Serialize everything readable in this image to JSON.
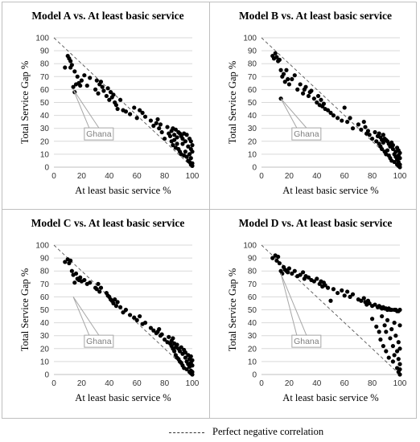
{
  "legend": {
    "label": "Perfect negative correlation"
  },
  "chart_data": [
    {
      "type": "scatter",
      "title": "Model A vs. At least basic service",
      "xlabel": "At least basic service %",
      "ylabel": "Total Service Gap %",
      "xlim": [
        0,
        100
      ],
      "ylim": [
        0,
        100
      ],
      "xticks": [
        "0",
        "20",
        "40",
        "60",
        "80",
        "100"
      ],
      "yticks": [
        "0",
        "10",
        "20",
        "30",
        "40",
        "50",
        "60",
        "70",
        "80",
        "90",
        "100"
      ],
      "grid": true,
      "annotation": "Ghana",
      "reference_line": "Perfect negative correlation",
      "series": [
        {
          "x": [
            8,
            10,
            11,
            12,
            12,
            13,
            14,
            15,
            15,
            16,
            17,
            18,
            19,
            20,
            22,
            24,
            26,
            30,
            31,
            32,
            33,
            34,
            35,
            36,
            38,
            39,
            40,
            41,
            42,
            43,
            44,
            45,
            46,
            48,
            50,
            52,
            55,
            58,
            60,
            62,
            64,
            66,
            70,
            72,
            74,
            75,
            76,
            77,
            78,
            80,
            82,
            83,
            84,
            85,
            85,
            86,
            86,
            87,
            87,
            88,
            88,
            89,
            89,
            90,
            90,
            91,
            91,
            92,
            92,
            93,
            93,
            94,
            94,
            95,
            95,
            96,
            96,
            97,
            97,
            98,
            98,
            98,
            99,
            99,
            99,
            99,
            100,
            100,
            100,
            100
          ],
          "y": [
            77,
            86,
            84,
            77,
            82,
            79,
            62,
            58,
            74,
            64,
            70,
            65,
            63,
            67,
            71,
            63,
            69,
            60,
            67,
            57,
            64,
            66,
            62,
            59,
            55,
            61,
            52,
            58,
            54,
            56,
            50,
            48,
            45,
            52,
            44,
            43,
            41,
            46,
            38,
            44,
            42,
            39,
            36,
            32,
            34,
            37,
            30,
            33,
            27,
            22,
            31,
            26,
            24,
            28,
            20,
            30,
            17,
            25,
            21,
            29,
            15,
            23,
            18,
            27,
            14,
            26,
            12,
            24,
            10,
            22,
            18,
            26,
            9,
            20,
            12,
            25,
            8,
            16,
            5,
            10,
            4,
            22,
            2,
            7,
            14,
            20,
            1,
            3,
            17,
            12
          ]
        }
      ]
    },
    {
      "type": "scatter",
      "title": "Model B vs. At least basic service",
      "xlabel": "At least basic service %",
      "ylabel": "Total Service Gap %",
      "xlim": [
        0,
        100
      ],
      "ylim": [
        0,
        100
      ],
      "xticks": [
        "0",
        "20",
        "40",
        "60",
        "80",
        "100"
      ],
      "yticks": [
        "0",
        "10",
        "20",
        "30",
        "40",
        "50",
        "60",
        "70",
        "80",
        "90",
        "100"
      ],
      "grid": true,
      "annotation": "Ghana",
      "reference_line": "Perfect negative correlation",
      "series": [
        {
          "x": [
            8,
            9,
            10,
            11,
            12,
            13,
            14,
            14,
            15,
            16,
            17,
            18,
            19,
            20,
            22,
            24,
            26,
            28,
            30,
            31,
            32,
            34,
            35,
            36,
            38,
            40,
            41,
            42,
            43,
            44,
            45,
            46,
            48,
            50,
            52,
            55,
            58,
            60,
            62,
            64,
            66,
            70,
            72,
            74,
            75,
            76,
            77,
            78,
            80,
            82,
            83,
            84,
            85,
            85,
            86,
            86,
            87,
            87,
            88,
            88,
            89,
            89,
            90,
            90,
            91,
            91,
            92,
            92,
            93,
            93,
            94,
            94,
            95,
            95,
            96,
            96,
            97,
            97,
            98,
            98,
            98,
            99,
            99,
            99,
            99,
            100,
            100,
            100,
            100
          ],
          "y": [
            86,
            84,
            88,
            85,
            82,
            83,
            53,
            75,
            70,
            72,
            66,
            75,
            68,
            64,
            68,
            71,
            60,
            64,
            57,
            60,
            62,
            55,
            58,
            59,
            53,
            50,
            55,
            48,
            52,
            47,
            49,
            45,
            44,
            42,
            40,
            38,
            36,
            46,
            35,
            38,
            30,
            33,
            29,
            35,
            31,
            26,
            28,
            25,
            22,
            27,
            20,
            24,
            18,
            26,
            16,
            23,
            21,
            14,
            25,
            19,
            12,
            22,
            10,
            21,
            13,
            20,
            9,
            18,
            7,
            16,
            19,
            5,
            14,
            17,
            10,
            4,
            12,
            8,
            2,
            6,
            15,
            1,
            4,
            9,
            13,
            0,
            2,
            7,
            11
          ]
        }
      ]
    },
    {
      "type": "scatter",
      "title": "Model C vs. At least basic service",
      "xlabel": "At least basic service %",
      "ylabel": "Total Service Gap %",
      "xlim": [
        0,
        100
      ],
      "ylim": [
        0,
        100
      ],
      "xticks": [
        "0",
        "20",
        "40",
        "60",
        "80",
        "100"
      ],
      "yticks": [
        "0",
        "10",
        "20",
        "30",
        "40",
        "50",
        "60",
        "70",
        "80",
        "90",
        "100"
      ],
      "grid": true,
      "annotation": "Ghana",
      "reference_line": "Perfect negative correlation",
      "series": [
        {
          "x": [
            8,
            10,
            11,
            12,
            13,
            14,
            15,
            16,
            17,
            18,
            19,
            20,
            22,
            24,
            26,
            30,
            31,
            32,
            33,
            34,
            38,
            39,
            40,
            41,
            42,
            43,
            44,
            45,
            46,
            48,
            50,
            52,
            55,
            58,
            60,
            62,
            64,
            66,
            70,
            72,
            74,
            75,
            76,
            77,
            78,
            80,
            82,
            83,
            84,
            85,
            85,
            86,
            86,
            87,
            87,
            88,
            88,
            89,
            89,
            90,
            90,
            91,
            91,
            92,
            92,
            93,
            93,
            94,
            94,
            95,
            95,
            96,
            96,
            97,
            97,
            98,
            98,
            98,
            99,
            99,
            99,
            99,
            100,
            100,
            100,
            100
          ],
          "y": [
            87,
            89,
            86,
            88,
            80,
            77,
            71,
            78,
            74,
            73,
            75,
            72,
            73,
            70,
            71,
            67,
            66,
            70,
            64,
            67,
            63,
            61,
            60,
            58,
            57,
            55,
            58,
            53,
            56,
            52,
            48,
            50,
            46,
            44,
            42,
            45,
            39,
            40,
            36,
            34,
            32,
            33,
            35,
            30,
            31,
            27,
            25,
            29,
            24,
            22,
            26,
            20,
            28,
            18,
            24,
            15,
            21,
            13,
            23,
            12,
            20,
            10,
            18,
            9,
            21,
            7,
            16,
            19,
            5,
            13,
            17,
            10,
            4,
            8,
            15,
            2,
            6,
            12,
            1,
            3,
            9,
            14,
            0,
            2,
            7,
            11
          ]
        }
      ]
    },
    {
      "type": "scatter",
      "title": "Model D vs. At least basic service",
      "xlabel": "At least basic service %",
      "ylabel": "Total Service Gap %",
      "xlim": [
        0,
        100
      ],
      "ylim": [
        0,
        100
      ],
      "xticks": [
        "0",
        "20",
        "40",
        "60",
        "80",
        "100"
      ],
      "yticks": [
        "0",
        "10",
        "20",
        "30",
        "40",
        "50",
        "60",
        "70",
        "80",
        "90",
        "100"
      ],
      "grid": true,
      "annotation": "Ghana",
      "reference_line": "Perfect negative correlation",
      "series": [
        {
          "x": [
            8,
            10,
            11,
            12,
            13,
            14,
            15,
            16,
            17,
            18,
            19,
            20,
            22,
            24,
            26,
            28,
            30,
            31,
            32,
            34,
            36,
            38,
            40,
            42,
            43,
            44,
            45,
            46,
            48,
            50,
            52,
            55,
            58,
            60,
            62,
            64,
            66,
            70,
            72,
            74,
            75,
            76,
            77,
            78,
            80,
            80,
            82,
            83,
            84,
            85,
            85,
            86,
            86,
            87,
            87,
            88,
            88,
            89,
            89,
            90,
            90,
            90,
            91,
            91,
            92,
            92,
            93,
            93,
            94,
            94,
            95,
            95,
            96,
            96,
            96,
            97,
            97,
            98,
            98,
            98,
            99,
            99,
            99,
            99,
            100,
            100,
            100,
            100,
            100,
            100
          ],
          "y": [
            90,
            92,
            88,
            91,
            86,
            80,
            78,
            83,
            81,
            80,
            79,
            82,
            78,
            80,
            76,
            77,
            79,
            74,
            76,
            75,
            73,
            72,
            74,
            70,
            72,
            68,
            71,
            69,
            67,
            57,
            66,
            63,
            65,
            61,
            64,
            60,
            62,
            58,
            57,
            59,
            56,
            54,
            57,
            55,
            43,
            53,
            54,
            37,
            52,
            33,
            53,
            27,
            52,
            45,
            51,
            22,
            52,
            38,
            51,
            18,
            33,
            51,
            42,
            50,
            13,
            51,
            28,
            50,
            35,
            50,
            10,
            22,
            50,
            40,
            15,
            30,
            50,
            5,
            18,
            49,
            2,
            12,
            25,
            49,
            0,
            4,
            8,
            20,
            38,
            50
          ]
        }
      ]
    }
  ]
}
